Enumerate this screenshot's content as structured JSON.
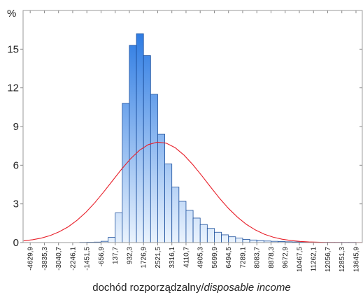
{
  "chart_data": {
    "type": "histogram",
    "ylabel": "%",
    "xlabel": "dochód rozporządzalny/",
    "xlabel_en": "disposable income",
    "bins": [
      -1848.8,
      -1451.5,
      -1054.2,
      -656.9,
      -259.6,
      137.7,
      535.0,
      932.3,
      1329.6,
      1726.9,
      2124.2,
      2521.5,
      2918.8,
      3316.1,
      3713.4,
      4110.7,
      4508.0,
      4905.3,
      5302.6,
      5699.9,
      6097.2,
      6494.5,
      6891.8,
      7289.1,
      7686.4,
      8083.7,
      8481.0,
      8878.3,
      9275.6,
      9672.9,
      10070.2,
      10467.5,
      10864.8,
      11262.1,
      11659.4,
      12056.7,
      12454.0,
      12851.3,
      13248.6,
      13645.9
    ],
    "values": [
      0.02,
      0.03,
      0.04,
      0.1,
      0.4,
      2.3,
      10.8,
      15.3,
      16.2,
      14.5,
      11.5,
      8.4,
      6.1,
      4.3,
      3.2,
      2.5,
      1.9,
      1.4,
      1.1,
      0.8,
      0.6,
      0.45,
      0.35,
      0.25,
      0.2,
      0.15,
      0.12,
      0.1,
      0.08,
      0.06,
      0.05,
      0.04,
      0.03,
      0.03,
      0.02,
      0.02,
      0.02,
      0.02,
      0.02
    ],
    "color": "#1a6fe0",
    "fit": {
      "color": "#e8202a",
      "x": [
        -5000,
        -4500,
        -4000,
        -3500,
        -3000,
        -2500,
        -2000,
        -1500,
        -1000,
        -500,
        0,
        500,
        1000,
        1500,
        2000,
        2500,
        3000,
        3500,
        4000,
        4500,
        5000,
        5500,
        6000,
        6500,
        7000,
        7500,
        8000,
        8500,
        9000,
        9500,
        10000,
        10500,
        11000,
        11500,
        12000,
        12500,
        13000,
        13500,
        14000
      ],
      "values": [
        0.13,
        0.22,
        0.35,
        0.55,
        0.84,
        1.22,
        1.73,
        2.36,
        3.1,
        3.94,
        4.82,
        5.7,
        6.5,
        7.16,
        7.6,
        7.79,
        7.71,
        7.36,
        6.78,
        6.03,
        5.18,
        4.29,
        3.42,
        2.64,
        1.97,
        1.41,
        0.98,
        0.65,
        0.42,
        0.26,
        0.16,
        0.09,
        0.05,
        0.03,
        0.014,
        0.01,
        0.004,
        0.002,
        0.001
      ]
    },
    "xlim": [
      -5030,
      14000
    ],
    "ylim": [
      0,
      18
    ],
    "yticks": [
      0,
      3,
      6,
      9,
      12,
      15
    ],
    "xticks": [
      {
        "value": -4629.9,
        "label": "-4629,9"
      },
      {
        "value": -3835.3,
        "label": "-3835,3"
      },
      {
        "value": -3040.7,
        "label": "-3040,7"
      },
      {
        "value": -2246.1,
        "label": "-2246,1"
      },
      {
        "value": -1451.5,
        "label": "-1451,5"
      },
      {
        "value": -656.9,
        "label": "-656,9"
      },
      {
        "value": 137.7,
        "label": "137,7"
      },
      {
        "value": 932.3,
        "label": "932,3"
      },
      {
        "value": 1726.9,
        "label": "1726,9"
      },
      {
        "value": 2521.5,
        "label": "2521,5"
      },
      {
        "value": 3316.1,
        "label": "3316,1"
      },
      {
        "value": 4110.7,
        "label": "4110,7"
      },
      {
        "value": 4905.3,
        "label": "4905,3"
      },
      {
        "value": 5699.9,
        "label": "5699,9"
      },
      {
        "value": 6494.5,
        "label": "6494,5"
      },
      {
        "value": 7289.1,
        "label": "7289,1"
      },
      {
        "value": 8083.7,
        "label": "8083,7"
      },
      {
        "value": 8878.3,
        "label": "8878,3"
      },
      {
        "value": 9672.9,
        "label": "9672,9"
      },
      {
        "value": 10467.5,
        "label": "10467,5"
      },
      {
        "value": 11262.1,
        "label": "11262,1"
      },
      {
        "value": 12056.7,
        "label": "12056,7"
      },
      {
        "value": 12851.3,
        "label": "12851,3"
      },
      {
        "value": 13645.9,
        "label": "13645,9"
      }
    ]
  }
}
